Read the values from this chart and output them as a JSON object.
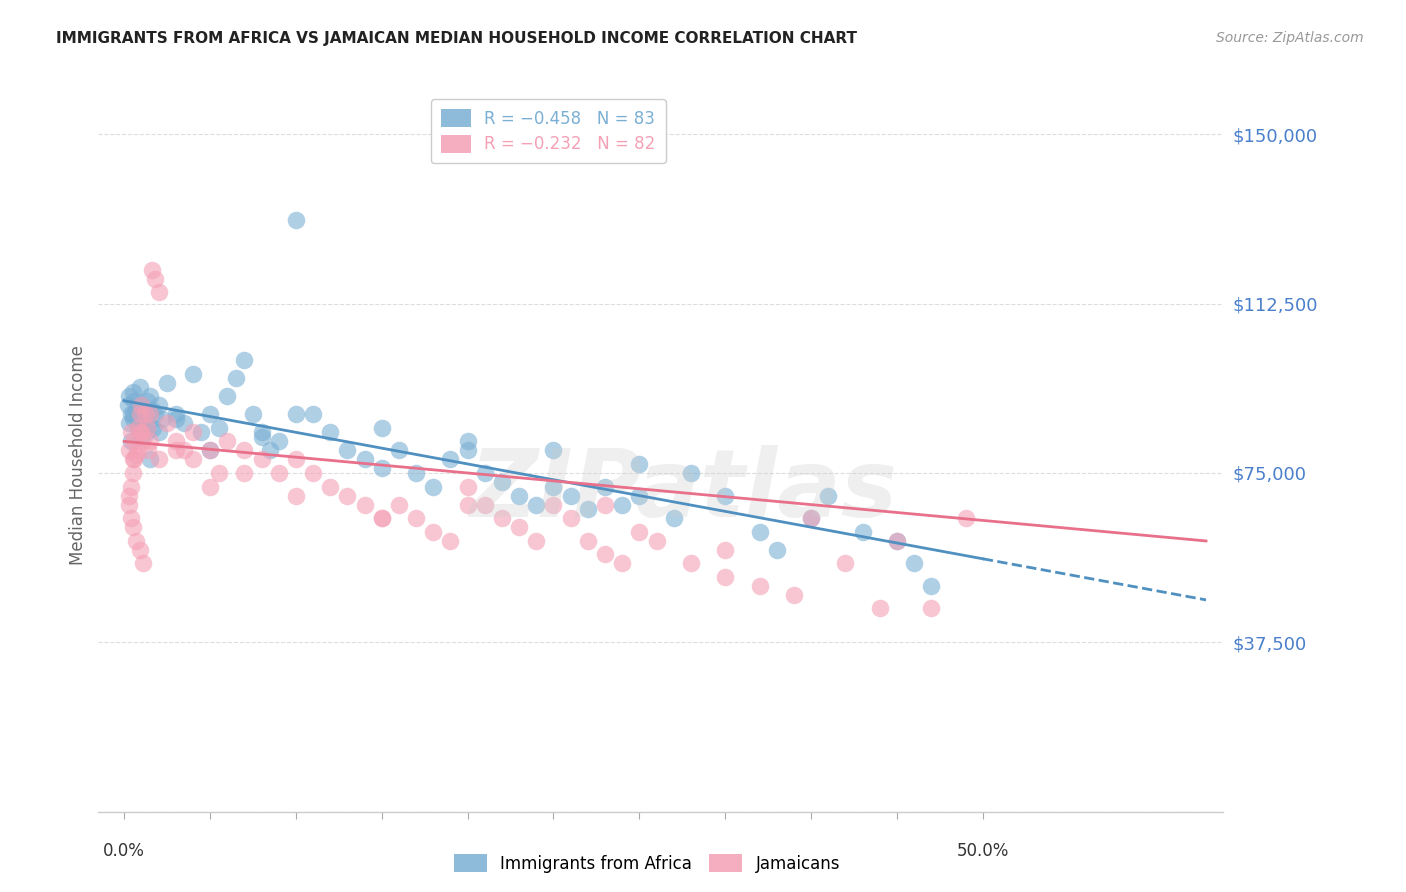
{
  "title": "IMMIGRANTS FROM AFRICA VS JAMAICAN MEDIAN HOUSEHOLD INCOME CORRELATION CHART",
  "source": "Source: ZipAtlas.com",
  "ylabel": "Median Household Income",
  "y_ticks": [
    0,
    37500,
    75000,
    112500,
    150000
  ],
  "y_tick_labels": [
    "",
    "$37,500",
    "$75,000",
    "$112,500",
    "$150,000"
  ],
  "x_min": 0.0,
  "x_max": 50.0,
  "y_min": 0,
  "y_max": 158000,
  "legend_label_africa": "Immigrants from Africa",
  "legend_label_jamaicans": "Jamaicans",
  "africa_color": "#7bafd4",
  "jamaican_color": "#f4a0b5",
  "africa_line_color": "#5090c0",
  "jamaican_line_color": "#e8708a",
  "africa_R": -0.458,
  "africa_N": 83,
  "jamaican_R": -0.232,
  "jamaican_N": 82,
  "watermark_text": "ZIPatlas",
  "grid_color": "#dddddd",
  "tick_label_color": "#4a7fcb",
  "africa_line_intercept": 91000,
  "africa_line_slope": -700,
  "jamaican_line_intercept": 82000,
  "jamaican_line_slope": -350,
  "africa_scatter_x": [
    0.2,
    0.3,
    0.4,
    0.5,
    0.5,
    0.6,
    0.7,
    0.8,
    0.9,
    1.0,
    1.0,
    1.1,
    1.2,
    1.3,
    1.3,
    1.4,
    1.5,
    1.6,
    1.7,
    1.8,
    2.0,
    2.2,
    2.5,
    3.0,
    3.5,
    4.0,
    4.5,
    5.0,
    5.5,
    6.0,
    6.5,
    7.0,
    7.5,
    8.0,
    8.5,
    9.0,
    10.0,
    11.0,
    12.0,
    13.0,
    14.0,
    15.0,
    16.0,
    17.0,
    18.0,
    19.0,
    20.0,
    21.0,
    22.0,
    23.0,
    24.0,
    25.0,
    26.0,
    27.0,
    28.0,
    29.0,
    30.0,
    32.0,
    33.0,
    35.0,
    37.0,
    38.0,
    40.0,
    41.0,
    43.0,
    45.0,
    46.0,
    47.0,
    30.0,
    25.0,
    20.0,
    15.0,
    10.0,
    8.0,
    5.0,
    3.0,
    2.0,
    1.5,
    1.0,
    0.8,
    0.5,
    0.4,
    0.3
  ],
  "africa_scatter_y": [
    90000,
    92000,
    88000,
    87000,
    93000,
    91000,
    89000,
    86000,
    94000,
    90000,
    85000,
    88000,
    87000,
    91000,
    84000,
    86000,
    92000,
    89000,
    85000,
    88000,
    90000,
    87000,
    95000,
    88000,
    86000,
    97000,
    84000,
    88000,
    85000,
    92000,
    96000,
    100000,
    88000,
    84000,
    80000,
    82000,
    131000,
    88000,
    84000,
    80000,
    78000,
    76000,
    80000,
    75000,
    72000,
    78000,
    80000,
    75000,
    73000,
    70000,
    68000,
    72000,
    70000,
    67000,
    72000,
    68000,
    70000,
    65000,
    75000,
    70000,
    62000,
    58000,
    65000,
    70000,
    62000,
    60000,
    55000,
    50000,
    77000,
    80000,
    82000,
    85000,
    88000,
    83000,
    80000,
    87000,
    84000,
    78000,
    83000,
    85000,
    88000,
    82000,
    86000
  ],
  "jamaican_scatter_x": [
    0.3,
    0.4,
    0.5,
    0.6,
    0.7,
    0.8,
    0.9,
    1.0,
    1.0,
    1.1,
    1.2,
    1.3,
    1.4,
    1.5,
    1.6,
    1.8,
    2.0,
    2.5,
    3.0,
    3.5,
    4.0,
    4.0,
    5.0,
    5.5,
    6.0,
    7.0,
    8.0,
    9.0,
    10.0,
    11.0,
    12.0,
    13.0,
    14.0,
    15.0,
    16.0,
    17.0,
    18.0,
    19.0,
    20.0,
    21.0,
    22.0,
    23.0,
    24.0,
    25.0,
    26.0,
    27.0,
    28.0,
    29.0,
    30.0,
    31.0,
    33.0,
    35.0,
    37.0,
    39.0,
    40.0,
    42.0,
    44.0,
    45.0,
    47.0,
    49.0,
    35.0,
    28.0,
    20.0,
    15.0,
    10.0,
    7.0,
    5.0,
    3.0,
    2.0,
    1.5,
    1.0,
    0.8,
    0.6,
    0.5,
    0.4,
    0.3,
    0.3,
    0.4,
    0.5,
    0.7,
    0.9,
    1.1
  ],
  "jamaican_scatter_y": [
    80000,
    84000,
    78000,
    82000,
    79000,
    85000,
    88000,
    84000,
    90000,
    82000,
    88000,
    85000,
    80000,
    88000,
    120000,
    118000,
    115000,
    86000,
    82000,
    80000,
    84000,
    78000,
    80000,
    75000,
    82000,
    80000,
    78000,
    75000,
    78000,
    75000,
    72000,
    70000,
    68000,
    65000,
    68000,
    65000,
    62000,
    60000,
    72000,
    68000,
    65000,
    63000,
    60000,
    68000,
    65000,
    60000,
    57000,
    55000,
    62000,
    60000,
    55000,
    52000,
    50000,
    48000,
    65000,
    55000,
    45000,
    60000,
    45000,
    65000,
    58000,
    68000,
    68000,
    65000,
    70000,
    75000,
    72000,
    80000,
    78000,
    82000,
    84000,
    80000,
    78000,
    75000,
    72000,
    70000,
    68000,
    65000,
    63000,
    60000,
    58000,
    55000
  ]
}
